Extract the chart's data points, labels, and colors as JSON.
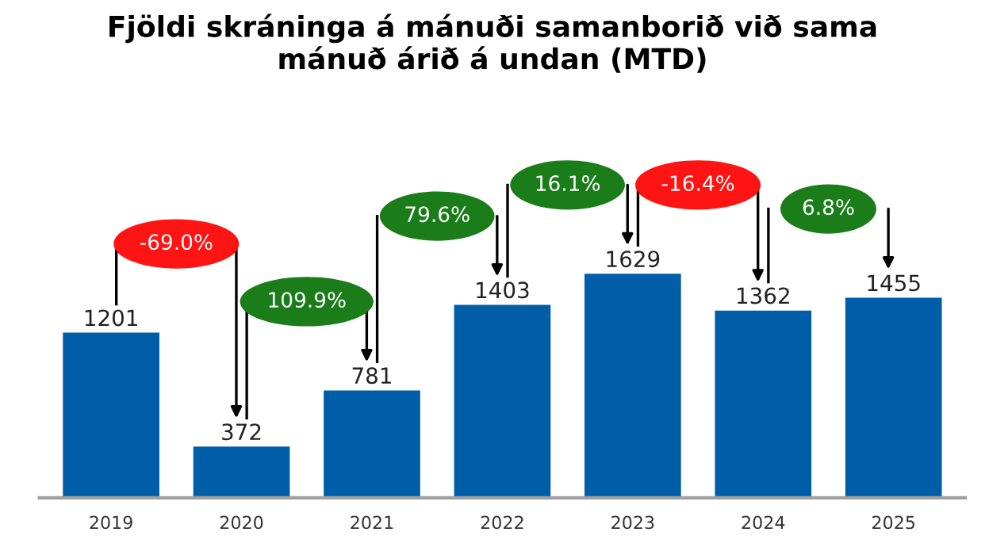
{
  "chart_data": {
    "type": "bar",
    "title": "Fjöldi skráninga á mánuði samanborið við sama\nmánuð árið á undan (MTD)",
    "categories": [
      "2019",
      "2020",
      "2021",
      "2022",
      "2023",
      "2024",
      "2025"
    ],
    "values": [
      1201,
      372,
      781,
      1403,
      1629,
      1362,
      1455
    ],
    "color": "#005ea8",
    "data_labels": true,
    "grid": false,
    "legend": false,
    "annotations": [
      "-69.0%",
      "109.9%",
      "79.6%",
      "16.1%",
      "-16.4%",
      "6.8%"
    ]
  }
}
